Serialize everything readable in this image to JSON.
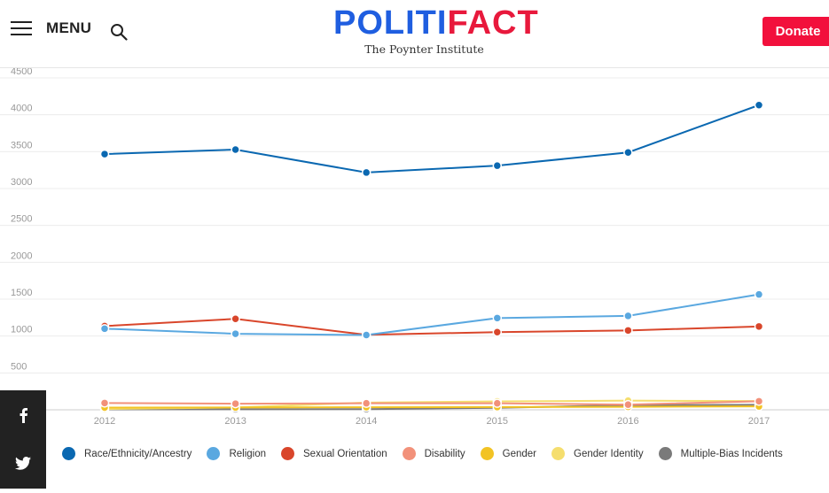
{
  "header": {
    "menu_label": "MENU",
    "logo": {
      "politi": "POLITI",
      "fact": "FACT",
      "subtitle": "The Poynter Institute"
    },
    "donate_label": "Donate"
  },
  "colors": {
    "brand_blue": "#1f5ee0",
    "brand_red": "#e8193c",
    "donate": "#f2103c"
  },
  "social": {
    "facebook": "facebook-icon",
    "twitter": "twitter-icon"
  },
  "chart_data": {
    "type": "line",
    "x": [
      "2012",
      "2013",
      "2014",
      "2015",
      "2016",
      "2017"
    ],
    "ylim": [
      0,
      4500
    ],
    "yticks": [
      "4500",
      "4000",
      "3500",
      "3000",
      "2500",
      "2000",
      "1500",
      "1000",
      "500"
    ],
    "grid": true,
    "legend_position": "bottom",
    "series": [
      {
        "name": "Race/Ethnicity/Ancestry",
        "color": "#0a68b1",
        "values": [
          3467,
          3528,
          3217,
          3310,
          3489,
          4131
        ]
      },
      {
        "name": "Religion",
        "color": "#5aa8e0",
        "values": [
          1100,
          1031,
          1014,
          1244,
          1273,
          1564
        ]
      },
      {
        "name": "Sexual Orientation",
        "color": "#d9462b",
        "values": [
          1135,
          1233,
          1017,
          1053,
          1076,
          1130
        ]
      },
      {
        "name": "Disability",
        "color": "#f2917a",
        "values": [
          92,
          83,
          88,
          88,
          70,
          116
        ]
      },
      {
        "name": "Gender",
        "color": "#f2c324",
        "values": [
          30,
          31,
          35,
          37,
          41,
          46
        ]
      },
      {
        "name": "Gender Identity",
        "color": "#f5de6e",
        "values": [
          10,
          31,
          98,
          114,
          124,
          119
        ]
      },
      {
        "name": "Multiple-Bias Incidents",
        "color": "#7a7a7a",
        "values": [
          6,
          7,
          9,
          27,
          63,
          68
        ]
      }
    ]
  }
}
